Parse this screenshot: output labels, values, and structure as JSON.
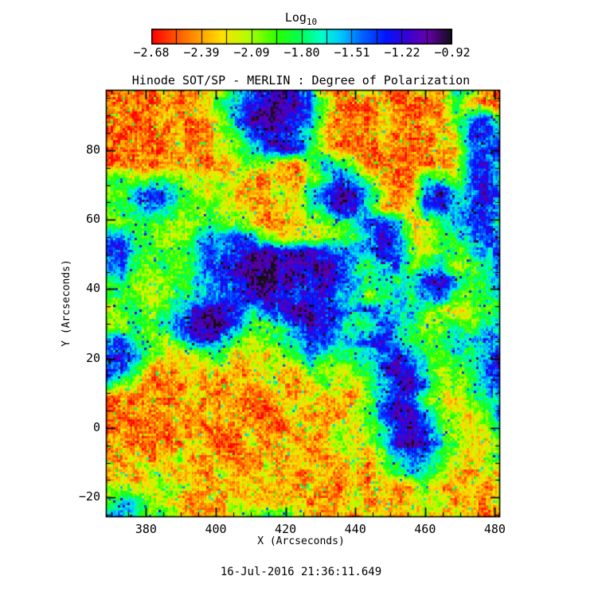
{
  "figure": {
    "title": "Hinode SOT/SP - MERLIN : Degree of Polarization",
    "timestamp": "16-Jul-2016 21:36:11.649"
  },
  "colorbar": {
    "title": "Log",
    "title_sub": "10",
    "tick_labels": [
      "−2.68",
      "−2.39",
      "−2.09",
      "−1.80",
      "−1.51",
      "−1.22",
      "−0.92"
    ],
    "min": -2.68,
    "max": -0.92,
    "stops": [
      [
        0.0,
        "#ff0000"
      ],
      [
        0.125,
        "#ff8000"
      ],
      [
        0.235,
        "#ffe000"
      ],
      [
        0.32,
        "#b4ff00"
      ],
      [
        0.42,
        "#28ff00"
      ],
      [
        0.5,
        "#00ff5a"
      ],
      [
        0.565,
        "#00ffc8"
      ],
      [
        0.63,
        "#00c8ff"
      ],
      [
        0.7,
        "#0064ff"
      ],
      [
        0.78,
        "#0014ff"
      ],
      [
        0.855,
        "#3c00d2"
      ],
      [
        0.92,
        "#6400aa"
      ],
      [
        1.0,
        "#0f0f14"
      ]
    ]
  },
  "chart_data": {
    "type": "heatmap",
    "title": "Hinode SOT/SP - MERLIN : Degree of Polarization",
    "xlabel": "X (Arcseconds)",
    "ylabel": "Y (Arcseconds)",
    "colorbar_title": "Log10",
    "colorbar_ticks": [
      -2.68,
      -2.39,
      -2.09,
      -1.8,
      -1.51,
      -1.22,
      -0.92
    ],
    "value_units": "log10(degree of polarization)",
    "x_range": [
      368.5,
      481.5
    ],
    "y_range": [
      -25.7,
      97.4
    ],
    "x_ticks": [
      380,
      400,
      420,
      440,
      460,
      480
    ],
    "x_tick_labels": [
      "380",
      "400",
      "420",
      "440",
      "460",
      "480"
    ],
    "y_ticks": [
      80,
      60,
      40,
      20,
      0,
      -20
    ],
    "y_tick_labels": [
      "80",
      "60",
      "40",
      "20",
      "0",
      "−20"
    ],
    "minor_tick_step_arcsec": 5,
    "grid_cols": 28,
    "grid_rows": 30,
    "level_values": {
      "0": -2.65,
      "1": -2.55,
      "2": -2.45,
      "3": -2.3,
      "4": -2.15,
      "5": -2.0,
      "6": -1.85,
      "7": -1.7,
      "8": -1.55,
      "9": -1.4,
      "A": -1.25,
      "B": -1.1,
      "C": -0.95
    },
    "grid_rows_levels": [
      "12213223579ABA82134212327522",
      "2121322468ABBC95212321226321",
      "1212322359BCBA841213213258A6",
      "21212312469AA9732123121349A9",
      "121213235579BA7412122123389A",
      "21212231246532587421221249A7",
      "56456543432232469852127549A8",
      "658A975453234379BB84239B88B9",
      "5679865544323468BA73249A79A8",
      "4566545655322345679A834689A7",
      "896545689A853344568B94357898",
      "9A7656798ABBABBA988A95465789",
      "89656569ABCCBABBA76895684578",
      "675456789ACCBBAB986767AB8678",
      "5654567899BBA9AA875686896567",
      "456568ABBA79ABBA989878543465",
      "546579BCB96579BA867986456578",
      "8975479A854568A9789A86568798",
      "9A864345634356876789A865768A",
      "A9632343423432654579BA74569A",
      "75421232132432354368AB854689",
      "12132242321232423258A9543578",
      "21213213232124232469BB854359",
      "12121321223213324357AB964347",
      "23122142124232235346BBA75435",
      "3242352321232432342589864346",
      "2325323243242324232468753243",
      "4534543232423232132423523423",
      "5785432324232323242324352324",
      "8975643234576532324323425323"
    ]
  }
}
